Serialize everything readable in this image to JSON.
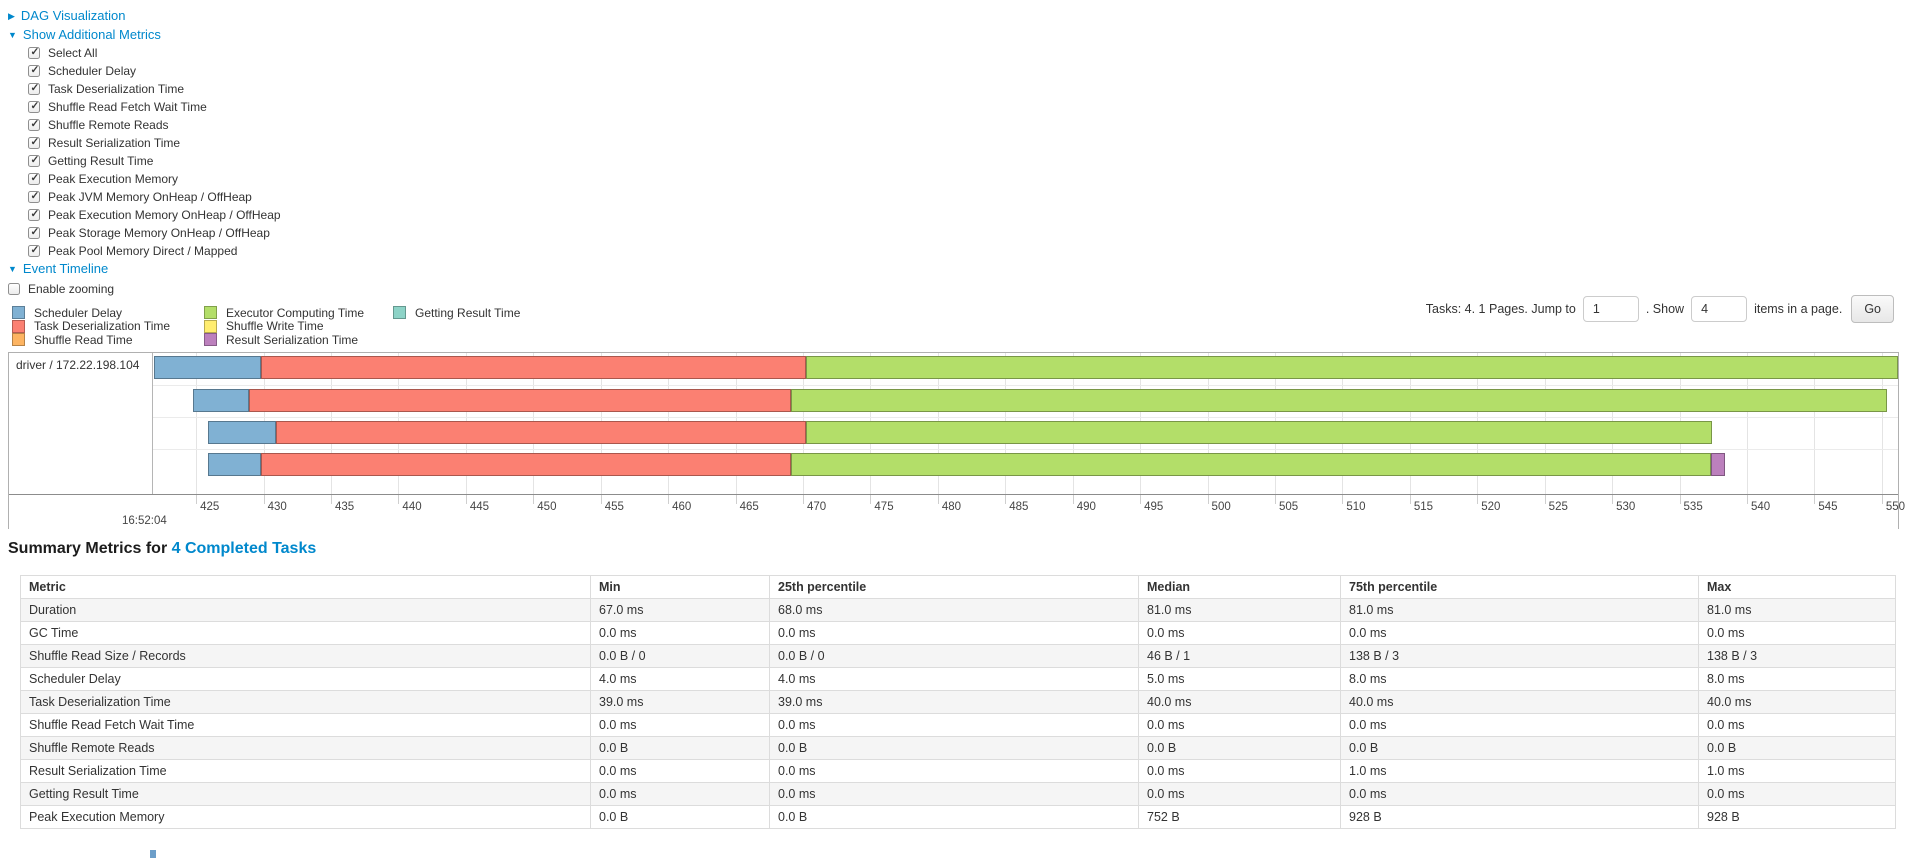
{
  "controls": {
    "dag_label": "DAG Visualization",
    "metrics_toggle_label": "Show Additional Metrics",
    "checkboxes": [
      {
        "label": "Select All",
        "checked": true
      },
      {
        "label": "Scheduler Delay",
        "checked": true
      },
      {
        "label": "Task Deserialization Time",
        "checked": true
      },
      {
        "label": "Shuffle Read Fetch Wait Time",
        "checked": true
      },
      {
        "label": "Shuffle Remote Reads",
        "checked": true
      },
      {
        "label": "Result Serialization Time",
        "checked": true
      },
      {
        "label": "Getting Result Time",
        "checked": true
      },
      {
        "label": "Peak Execution Memory",
        "checked": true
      },
      {
        "label": "Peak JVM Memory OnHeap / OffHeap",
        "checked": true
      },
      {
        "label": "Peak Execution Memory OnHeap / OffHeap",
        "checked": true
      },
      {
        "label": "Peak Storage Memory OnHeap / OffHeap",
        "checked": true
      },
      {
        "label": "Peak Pool Memory Direct / Mapped",
        "checked": true
      }
    ],
    "event_timeline_label": "Event Timeline",
    "enable_zooming": {
      "label": "Enable zooming",
      "checked": false
    }
  },
  "timeline": {
    "legend": {
      "columns": [
        [
          {
            "label": "Scheduler Delay",
            "color": "#80B1D3"
          },
          {
            "label": "Task Deserialization Time",
            "color": "#FB8072"
          },
          {
            "label": "Shuffle Read Time",
            "color": "#FDB462"
          }
        ],
        [
          {
            "label": "Executor Computing Time",
            "color": "#B3DE69"
          },
          {
            "label": "Shuffle Write Time",
            "color": "#FFED6F"
          },
          {
            "label": "Result Serialization Time",
            "color": "#BC80BD"
          }
        ],
        [
          {
            "label": "Getting Result Time",
            "color": "#8DD3C7"
          }
        ]
      ]
    },
    "pagination": {
      "text_before": "Tasks: 4. 1 Pages. Jump to",
      "jump_value": "1",
      "text_mid": ". Show",
      "show_value": "4",
      "text_after": "items in a page.",
      "go_label": "Go"
    },
    "row_label": "driver / 172.22.198.104",
    "colors": {
      "scheduler_delay": "#80B1D3",
      "task_deserialization": "#FB8072",
      "shuffle_read": "#FDB462",
      "executor_computing": "#B3DE69",
      "shuffle_write": "#FFED6F",
      "result_serialization": "#BC80BD",
      "getting_result": "#8DD3C7"
    },
    "axis": {
      "domain": [
        421.8,
        551.2
      ],
      "ticks": [
        425,
        430,
        435,
        440,
        445,
        450,
        455,
        460,
        465,
        470,
        475,
        480,
        485,
        490,
        495,
        500,
        505,
        510,
        515,
        520,
        525,
        530,
        535,
        540,
        545,
        550
      ],
      "major_label": "16:52:04"
    },
    "tasks": [
      {
        "segments": [
          {
            "type": "scheduler_delay",
            "start": 421.9,
            "end": 429.8
          },
          {
            "type": "task_deserialization",
            "start": 429.8,
            "end": 470.2
          },
          {
            "type": "executor_computing",
            "start": 470.2,
            "end": 551.2
          }
        ]
      },
      {
        "segments": [
          {
            "type": "scheduler_delay",
            "start": 424.8,
            "end": 428.9
          },
          {
            "type": "task_deserialization",
            "start": 428.9,
            "end": 469.1
          },
          {
            "type": "executor_computing",
            "start": 469.1,
            "end": 550.4
          }
        ]
      },
      {
        "segments": [
          {
            "type": "scheduler_delay",
            "start": 425.9,
            "end": 430.9
          },
          {
            "type": "task_deserialization",
            "start": 430.9,
            "end": 470.2
          },
          {
            "type": "executor_computing",
            "start": 470.2,
            "end": 537.4
          }
        ]
      },
      {
        "segments": [
          {
            "type": "scheduler_delay",
            "start": 425.9,
            "end": 429.8
          },
          {
            "type": "task_deserialization",
            "start": 429.8,
            "end": 469.1
          },
          {
            "type": "executor_computing",
            "start": 469.1,
            "end": 537.3
          },
          {
            "type": "result_serialization",
            "start": 537.3,
            "end": 538.4
          }
        ]
      }
    ]
  },
  "summary": {
    "title_prefix": "Summary Metrics for ",
    "title_link": "4 Completed Tasks",
    "table": {
      "headers": [
        "Metric",
        "Min",
        "25th percentile",
        "Median",
        "75th percentile",
        "Max"
      ],
      "rows": [
        {
          "metric": "Duration",
          "values": [
            "67.0 ms",
            "68.0 ms",
            "81.0 ms",
            "81.0 ms",
            "81.0 ms"
          ]
        },
        {
          "metric": "GC Time",
          "values": [
            "0.0 ms",
            "0.0 ms",
            "0.0 ms",
            "0.0 ms",
            "0.0 ms"
          ]
        },
        {
          "metric": "Shuffle Read Size / Records",
          "values": [
            "0.0 B / 0",
            "0.0 B / 0",
            "46 B / 1",
            "138 B / 3",
            "138 B / 3"
          ]
        },
        {
          "metric": "Scheduler Delay",
          "values": [
            "4.0 ms",
            "4.0 ms",
            "5.0 ms",
            "8.0 ms",
            "8.0 ms"
          ]
        },
        {
          "metric": "Task Deserialization Time",
          "values": [
            "39.0 ms",
            "39.0 ms",
            "40.0 ms",
            "40.0 ms",
            "40.0 ms"
          ]
        },
        {
          "metric": "Shuffle Read Fetch Wait Time",
          "values": [
            "0.0 ms",
            "0.0 ms",
            "0.0 ms",
            "0.0 ms",
            "0.0 ms"
          ]
        },
        {
          "metric": "Shuffle Remote Reads",
          "values": [
            "0.0 B",
            "0.0 B",
            "0.0 B",
            "0.0 B",
            "0.0 B"
          ]
        },
        {
          "metric": "Result Serialization Time",
          "values": [
            "0.0 ms",
            "0.0 ms",
            "0.0 ms",
            "1.0 ms",
            "1.0 ms"
          ]
        },
        {
          "metric": "Getting Result Time",
          "values": [
            "0.0 ms",
            "0.0 ms",
            "0.0 ms",
            "0.0 ms",
            "0.0 ms"
          ]
        },
        {
          "metric": "Peak Execution Memory",
          "values": [
            "0.0 B",
            "0.0 B",
            "752 B",
            "928 B",
            "928 B"
          ]
        }
      ]
    }
  }
}
